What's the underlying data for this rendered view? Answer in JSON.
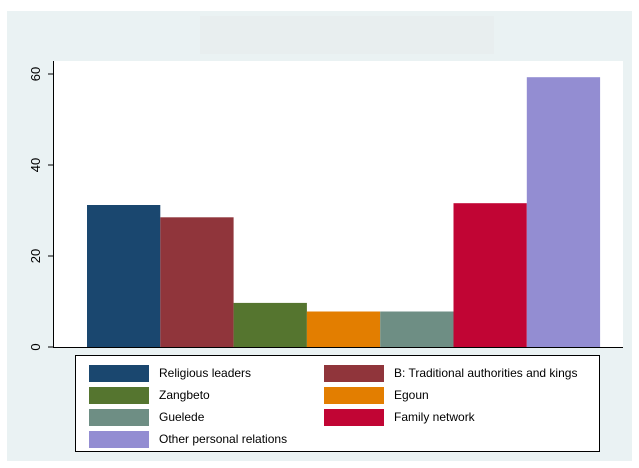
{
  "chart_data": {
    "type": "bar",
    "title": "",
    "xlabel": "",
    "ylabel": "",
    "ylim": [
      0,
      65
    ],
    "yticks": [
      0,
      20,
      40,
      60
    ],
    "grid": false,
    "legend_position": "bottom",
    "series": [
      {
        "name": "Religious leaders",
        "value": 31.2,
        "color": "#1a476f"
      },
      {
        "name": "B: Traditional authorities and kings",
        "value": 28.5,
        "color": "#90353b"
      },
      {
        "name": "Zangbeto",
        "value": 9.7,
        "color": "#55752f"
      },
      {
        "name": "Egoun",
        "value": 7.8,
        "color": "#e37e00"
      },
      {
        "name": "Guelede",
        "value": 7.8,
        "color": "#6e8e84"
      },
      {
        "name": "Family network",
        "value": 31.6,
        "color": "#c10534"
      },
      {
        "name": "Other personal relations",
        "value": 59.3,
        "color": "#938dd2"
      }
    ]
  },
  "colors": {
    "background": "#eaf2f3",
    "plot_background": "#ffffff"
  }
}
